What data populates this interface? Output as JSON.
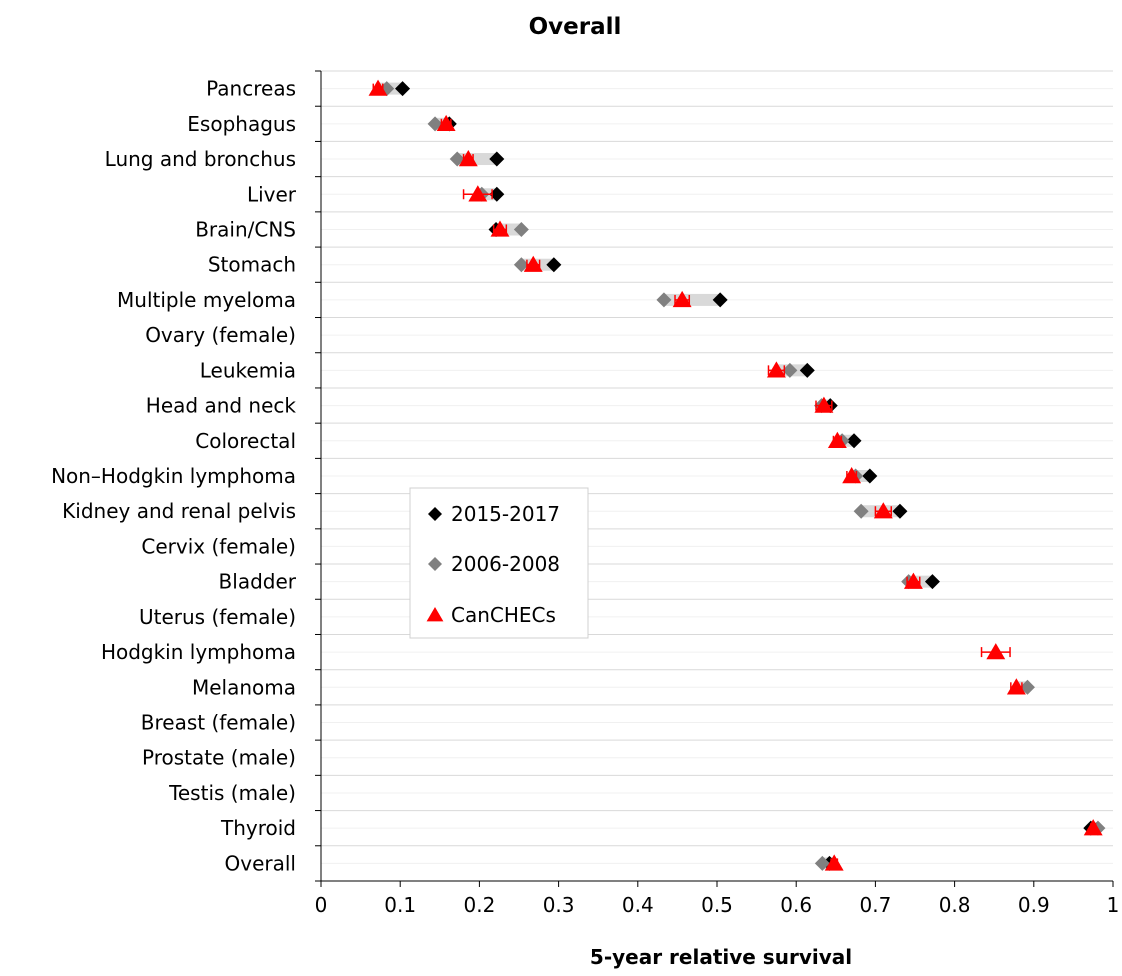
{
  "chart_data": {
    "type": "scatter",
    "title": "Overall",
    "xlabel": "5-year relative survival",
    "ylabel": "",
    "xlim": [
      0,
      1
    ],
    "xticks": [
      "0",
      "0.1",
      "0.2",
      "0.3",
      "0.4",
      "0.5",
      "0.6",
      "0.7",
      "0.8",
      "0.9",
      "1"
    ],
    "grid": "horizontal",
    "legend_position": "center-left",
    "categories": [
      "Pancreas",
      "Esophagus",
      "Lung and bronchus",
      "Liver",
      "Brain/CNS",
      "Stomach",
      "Multiple myeloma",
      "Ovary (female)",
      "Leukemia",
      "Head and neck",
      "Colorectal",
      "Non–Hodgkin lymphoma",
      "Kidney and renal pelvis",
      "Cervix (female)",
      "Bladder",
      "Uterus (female)",
      "Hodgkin lymphoma",
      "Melanoma",
      "Breast (female)",
      "Prostate (male)",
      "Testis (male)",
      "Thyroid",
      "Overall"
    ],
    "series": [
      {
        "name": "2015-2017",
        "marker": "diamond",
        "color": "#000000",
        "values": [
          0.103,
          0.162,
          0.222,
          0.222,
          0.221,
          0.294,
          0.504,
          null,
          0.614,
          0.643,
          0.673,
          0.693,
          0.731,
          null,
          0.772,
          null,
          null,
          null,
          null,
          null,
          null,
          0.972,
          0.642
        ]
      },
      {
        "name": "2006-2008",
        "marker": "diamond",
        "color": "#808080",
        "values": [
          0.083,
          0.144,
          0.172,
          0.203,
          0.253,
          0.253,
          0.433,
          null,
          0.592,
          0.632,
          0.658,
          0.675,
          0.682,
          null,
          0.742,
          null,
          null,
          0.892,
          null,
          null,
          null,
          0.981,
          0.633
        ]
      },
      {
        "name": "CanCHECs",
        "marker": "triangle",
        "color": "#FF0000",
        "values": [
          0.072,
          0.158,
          0.186,
          0.198,
          0.226,
          0.268,
          0.456,
          null,
          0.575,
          0.635,
          0.652,
          0.67,
          0.71,
          null,
          0.748,
          null,
          0.852,
          0.878,
          null,
          null,
          null,
          0.975,
          0.648
        ],
        "error": [
          0.006,
          0.006,
          0.006,
          0.018,
          0.008,
          0.008,
          0.009,
          null,
          0.01,
          0.01,
          0.005,
          0.006,
          0.01,
          null,
          0.008,
          null,
          0.018,
          0.007,
          null,
          null,
          null,
          0.003,
          0.004
        ]
      }
    ]
  }
}
